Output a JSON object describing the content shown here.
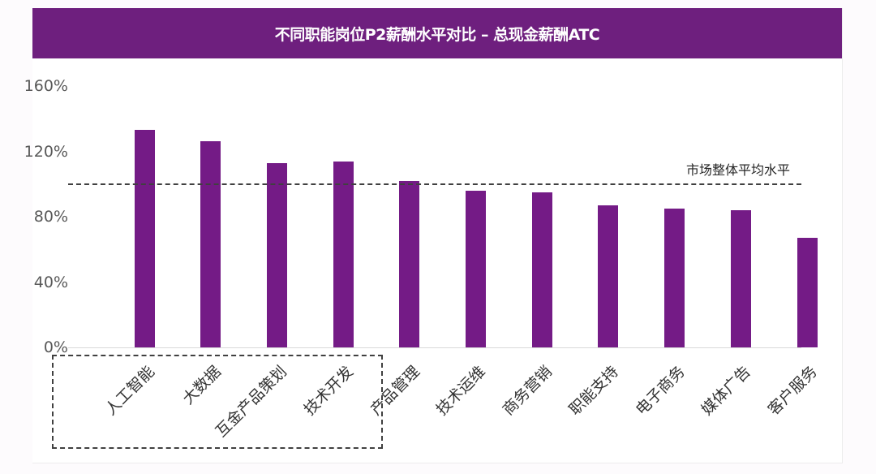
{
  "header": {
    "title": "不同职能岗位P2薪酬水平对比 – 总现金薪酬ATC"
  },
  "average_line": {
    "label": "市场整体平均水平",
    "value": 100
  },
  "colors": {
    "header_bg": "#6e1f7e",
    "bar": "#741b86",
    "avg_line": "#404040"
  },
  "chart_data": {
    "type": "bar",
    "title": "不同职能岗位P2薪酬水平对比 – 总现金薪酬ATC",
    "xlabel": "",
    "ylabel": "",
    "ylim": [
      0,
      160
    ],
    "yticks": [
      "0%",
      "40%",
      "80%",
      "120%",
      "160%"
    ],
    "grid": false,
    "legend": null,
    "categories": [
      "人工智能",
      "大数据",
      "互金产品策划",
      "技术开发",
      "产品管理",
      "技术运维",
      "商务营销",
      "职能支持",
      "电子商务",
      "媒体广告",
      "客户服务"
    ],
    "values": [
      133,
      126,
      113,
      114,
      102,
      96,
      95,
      87,
      85,
      84,
      67
    ],
    "unit": "%",
    "reference_line": {
      "label": "市场整体平均水平",
      "value": 100,
      "style": "dashed"
    },
    "annotations": [
      {
        "type": "dashed-box",
        "covers": [
          "人工智能",
          "大数据",
          "互金产品策划",
          "技术开发",
          "产品管理"
        ]
      }
    ]
  }
}
